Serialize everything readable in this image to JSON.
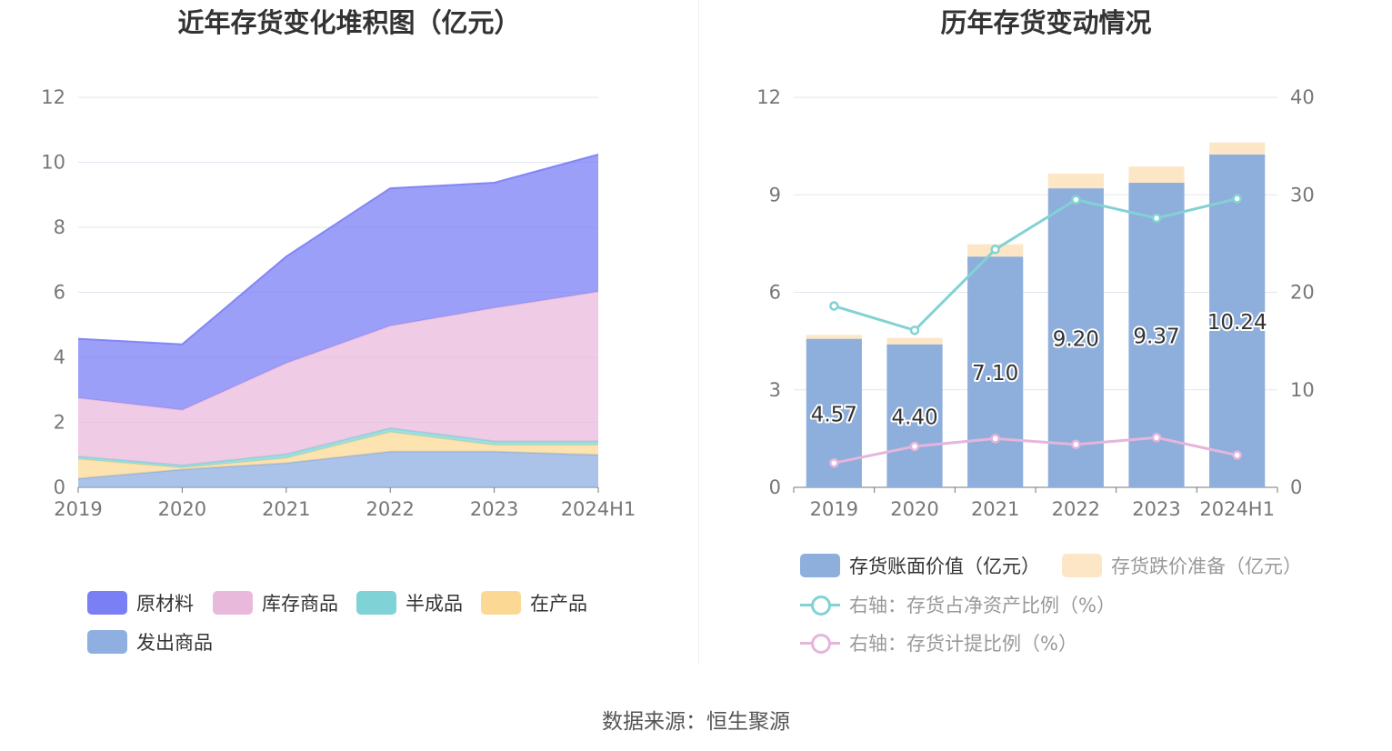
{
  "left_chart": {
    "title": "近年存货变化堆积图（亿元）",
    "legend": [
      {
        "name": "原材料",
        "color": "#7b7ff5"
      },
      {
        "name": "库存商品",
        "color": "#e9b9dc"
      },
      {
        "name": "半成品",
        "color": "#7fd3d7"
      },
      {
        "name": "在产品",
        "color": "#fbd995"
      },
      {
        "name": "发出商品",
        "color": "#8fafe0"
      }
    ]
  },
  "right_chart": {
    "title": "历年存货变动情况",
    "legend": [
      {
        "name": "存货账面价值（亿元）",
        "color": "#8eaedc"
      },
      {
        "name": "存货跌价准备（亿元）",
        "color": "#fde6c6"
      },
      {
        "name": "右轴：存货占净资产比例（%）",
        "color": "#82d2d4"
      },
      {
        "name": "右轴：存货计提比例（%）",
        "color": "#e5b5dc"
      }
    ]
  },
  "source": "数据来源：恒生聚源",
  "chart_data": [
    {
      "type": "area",
      "stacked": true,
      "title": "近年存货变化堆积图（亿元）",
      "categories": [
        "2019",
        "2020",
        "2021",
        "2022",
        "2023",
        "2024H1"
      ],
      "ylim": [
        0,
        12
      ],
      "yticks": [
        0,
        2,
        4,
        6,
        8,
        10,
        12
      ],
      "grid": true,
      "legend_position": "bottom",
      "series": [
        {
          "name": "发出商品",
          "color": "#8fafe0",
          "values": [
            0.27,
            0.55,
            0.75,
            1.1,
            1.1,
            1.0
          ]
        },
        {
          "name": "在产品",
          "color": "#fbd995",
          "values": [
            0.6,
            0.05,
            0.15,
            0.6,
            0.2,
            0.3
          ]
        },
        {
          "name": "半成品",
          "color": "#7fd3d7",
          "values": [
            0.08,
            0.08,
            0.12,
            0.12,
            0.12,
            0.12
          ]
        },
        {
          "name": "库存商品",
          "color": "#e9b9dc",
          "values": [
            1.8,
            1.7,
            2.8,
            3.15,
            4.1,
            4.6
          ]
        },
        {
          "name": "原材料",
          "color": "#7b7ff5",
          "values": [
            1.82,
            2.02,
            3.28,
            4.23,
            3.85,
            4.22
          ]
        }
      ]
    },
    {
      "type": "bar",
      "stacked": true,
      "title": "历年存货变动情况",
      "categories": [
        "2019",
        "2020",
        "2021",
        "2022",
        "2023",
        "2024H1"
      ],
      "ylim": [
        0,
        12
      ],
      "yticks": [
        0,
        3,
        6,
        9,
        12
      ],
      "y2lim": [
        0,
        40
      ],
      "y2ticks": [
        0,
        10,
        20,
        30,
        40
      ],
      "grid": true,
      "legend_position": "bottom",
      "series": [
        {
          "name": "存货账面价值（亿元）",
          "type": "bar",
          "color": "#8eaedc",
          "values": [
            4.57,
            4.4,
            7.1,
            9.2,
            9.37,
            10.24
          ],
          "labels": [
            "4.57",
            "4.40",
            "7.10",
            "9.20",
            "9.37",
            "10.24"
          ]
        },
        {
          "name": "存货跌价准备（亿元）",
          "type": "bar",
          "color": "#fde6c6",
          "values": [
            0.12,
            0.2,
            0.38,
            0.45,
            0.5,
            0.37
          ]
        },
        {
          "name": "右轴：存货占净资产比例（%）",
          "type": "line",
          "axis": "right",
          "color": "#82d2d4",
          "values": [
            18.6,
            16.1,
            24.4,
            29.5,
            27.6,
            29.6
          ]
        },
        {
          "name": "右轴：存货计提比例（%）",
          "type": "line",
          "axis": "right",
          "color": "#e5b5dc",
          "values": [
            2.5,
            4.2,
            5.0,
            4.4,
            5.1,
            3.3
          ]
        }
      ]
    }
  ]
}
